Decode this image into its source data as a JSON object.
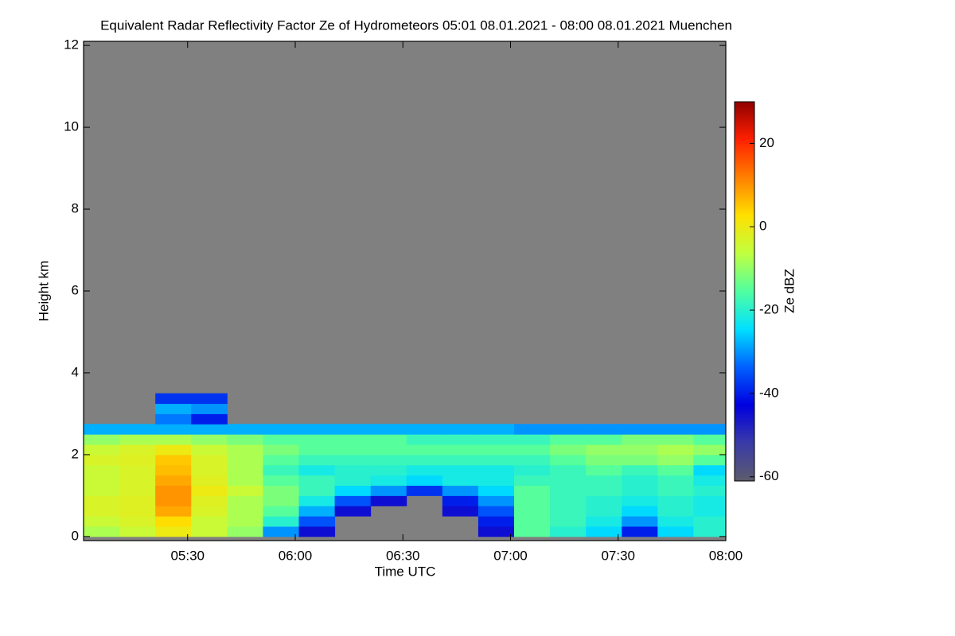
{
  "chart_data": {
    "type": "heatmap",
    "title": "Equivalent Radar Reflectivity Factor Ze of Hydrometeors   05:01 08.01.2021 - 08:00 08.01.2021 Muenchen",
    "x_label": "Time UTC",
    "y_label": "Height km",
    "colorbar_label": "Ze dBZ",
    "x": [
      306,
      316,
      326,
      336,
      346,
      356,
      366,
      376,
      386,
      396,
      406,
      416,
      426,
      436,
      446,
      456,
      466,
      476
    ],
    "y": [
      0.125,
      0.375,
      0.625,
      0.875,
      1.125,
      1.375,
      1.625,
      1.875,
      2.125,
      2.375,
      2.625,
      2.875,
      3.125,
      3.375
    ],
    "z": [
      [
        -8,
        -5,
        0,
        -5,
        -10,
        -30,
        -45,
        null,
        null,
        null,
        null,
        -45,
        -15,
        -20,
        -25,
        -40,
        -25,
        -20
      ],
      [
        -5,
        -3,
        3,
        -5,
        -8,
        -20,
        -35,
        null,
        null,
        null,
        null,
        -40,
        -15,
        -18,
        -22,
        -30,
        -22,
        -20
      ],
      [
        -3,
        -2,
        8,
        -3,
        -8,
        -15,
        -28,
        -45,
        null,
        null,
        -45,
        -35,
        -15,
        -18,
        -20,
        -25,
        -20,
        -22
      ],
      [
        -3,
        -2,
        10,
        -2,
        -8,
        -12,
        -22,
        -35,
        -45,
        null,
        -40,
        -30,
        -15,
        -18,
        -20,
        -22,
        -20,
        -22
      ],
      [
        -5,
        -3,
        10,
        0,
        -5,
        -12,
        -18,
        -25,
        -30,
        -38,
        -30,
        -25,
        -15,
        -18,
        -18,
        -20,
        -18,
        -20
      ],
      [
        -5,
        -3,
        8,
        -2,
        -8,
        -15,
        -18,
        -20,
        -22,
        -25,
        -22,
        -22,
        -18,
        -18,
        -18,
        -20,
        -18,
        -22
      ],
      [
        -5,
        -3,
        6,
        -3,
        -8,
        -18,
        -22,
        -20,
        -20,
        -22,
        -22,
        -22,
        -20,
        -18,
        -15,
        -18,
        -15,
        -25
      ],
      [
        -3,
        -2,
        5,
        -3,
        -8,
        -15,
        -18,
        -18,
        -18,
        -18,
        -18,
        -18,
        -18,
        -15,
        -12,
        -12,
        -10,
        -15
      ],
      [
        -5,
        -3,
        0,
        -5,
        -8,
        -12,
        -15,
        -15,
        -15,
        -15,
        -15,
        -15,
        -15,
        -12,
        -10,
        -10,
        -8,
        -10
      ],
      [
        -10,
        -8,
        -8,
        -10,
        -12,
        -15,
        -15,
        -15,
        -15,
        -18,
        -18,
        -18,
        -18,
        -15,
        -15,
        -12,
        -12,
        -15
      ],
      [
        -28,
        -28,
        -28,
        -28,
        -28,
        -28,
        -28,
        -28,
        -28,
        -28,
        -28,
        -28,
        -30,
        -30,
        -30,
        -30,
        -30,
        -30
      ],
      [
        null,
        null,
        -32,
        -40,
        null,
        null,
        null,
        null,
        null,
        null,
        null,
        null,
        null,
        null,
        null,
        null,
        null,
        null
      ],
      [
        null,
        null,
        -28,
        -30,
        null,
        null,
        null,
        null,
        null,
        null,
        null,
        null,
        null,
        null,
        null,
        null,
        null,
        null
      ],
      [
        null,
        null,
        -38,
        -38,
        null,
        null,
        null,
        null,
        null,
        null,
        null,
        null,
        null,
        null,
        null,
        null,
        null,
        null
      ]
    ],
    "xlim": [
      301,
      480
    ],
    "xticks": [
      {
        "value": 330,
        "label": "05:30"
      },
      {
        "value": 360,
        "label": "06:00"
      },
      {
        "value": 390,
        "label": "06:30"
      },
      {
        "value": 420,
        "label": "07:00"
      },
      {
        "value": 450,
        "label": "07:30"
      },
      {
        "value": 480,
        "label": "08:00"
      }
    ],
    "ylim": [
      -0.1,
      12.1
    ],
    "yticks": [
      0,
      2,
      4,
      6,
      8,
      10,
      12
    ],
    "zlim": [
      -61,
      30
    ],
    "zticks": [
      -60,
      -40,
      -20,
      0,
      20
    ],
    "colorscale": [
      "#5c5c6c",
      "#3a3aa8",
      "#0000e0",
      "#0060ff",
      "#00e0ff",
      "#50ffa0",
      "#c0ff40",
      "#ffe000",
      "#ff8000",
      "#ff2000",
      "#900000"
    ],
    "background_color": "#808080"
  }
}
